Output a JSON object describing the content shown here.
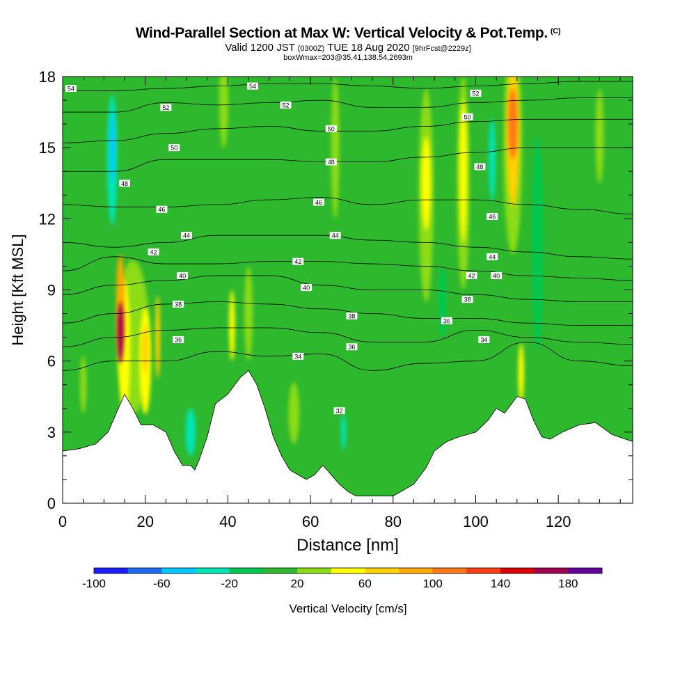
{
  "header": {
    "title": "Wind-Parallel Section at Max W: Vertical Velocity & Pot.Temp.",
    "title_mark": "(C)",
    "valid_line_a": "Valid 1200 JST",
    "valid_line_b": "(0300Z)",
    "valid_line_c": "TUE 18 Aug 2020",
    "valid_line_d": "[9hrFcst@2229z]",
    "box_line": "boxWmax=203@35.41,138.54,2693m"
  },
  "chart_data": {
    "type": "heatmap",
    "xlabel": "Distance [nm]",
    "ylabel": "Height [Kft MSL]",
    "xlim": [
      0,
      138
    ],
    "ylim": [
      0,
      18
    ],
    "x_ticks": [
      0,
      20,
      40,
      60,
      80,
      100,
      120
    ],
    "y_ticks": [
      0,
      3,
      6,
      9,
      12,
      15,
      18
    ],
    "grid": false,
    "background_field": {
      "name": "Vertical Velocity [cm/s]",
      "value": 10
    },
    "terrain_kft": {
      "x": [
        0,
        4,
        8,
        11,
        13,
        15,
        17,
        19,
        22,
        25,
        27,
        29,
        31,
        32,
        33,
        35,
        37,
        40,
        43,
        45,
        47,
        49,
        51,
        53,
        55,
        57,
        59,
        61,
        63,
        65,
        67,
        69,
        71,
        75,
        80,
        85,
        88,
        90,
        93,
        96,
        100,
        103,
        105,
        107,
        110,
        112,
        114,
        116,
        118,
        121,
        125,
        129,
        133,
        138
      ],
      "height": [
        2.2,
        2.3,
        2.5,
        3.0,
        3.8,
        4.6,
        4.0,
        3.3,
        3.3,
        3.0,
        2.2,
        1.6,
        1.6,
        1.4,
        1.8,
        2.8,
        4.2,
        4.6,
        5.3,
        5.6,
        5.0,
        4.0,
        2.8,
        2.0,
        1.4,
        1.2,
        1.0,
        1.2,
        1.6,
        1.2,
        0.8,
        0.5,
        0.3,
        0.3,
        0.3,
        0.8,
        1.5,
        2.2,
        2.6,
        2.8,
        3.0,
        3.5,
        4.0,
        3.8,
        4.5,
        4.4,
        3.5,
        2.8,
        2.7,
        3.0,
        3.3,
        3.4,
        2.9,
        2.6
      ]
    },
    "velocity_cells": [
      {
        "x": 14,
        "y": 7.2,
        "w": 1.6,
        "h": 2.6,
        "value": 170
      },
      {
        "x": 14,
        "y": 8.5,
        "w": 2.0,
        "h": 4.0,
        "value": 90
      },
      {
        "x": 15,
        "y": 6.5,
        "w": 2.8,
        "h": 5.8,
        "value": 50
      },
      {
        "x": 20,
        "y": 6.5,
        "w": 1.6,
        "h": 2.0,
        "value": 70
      },
      {
        "x": 20,
        "y": 6.0,
        "w": 2.8,
        "h": 4.5,
        "value": 40
      },
      {
        "x": 23,
        "y": 7.0,
        "w": 1.2,
        "h": 3.5,
        "value": 60
      },
      {
        "x": 17,
        "y": 7.0,
        "w": 8.0,
        "h": 6.5,
        "value": 20
      },
      {
        "x": 5,
        "y": 5.0,
        "w": 1.6,
        "h": 2.4,
        "value": 20
      },
      {
        "x": 12,
        "y": 14.5,
        "w": 2.4,
        "h": 5.5,
        "value": -30
      },
      {
        "x": 12,
        "y": 15.0,
        "w": 1.2,
        "h": 3.0,
        "value": -50
      },
      {
        "x": 41,
        "y": 7.5,
        "w": 1.4,
        "h": 3.0,
        "value": 40
      },
      {
        "x": 45,
        "y": 8.0,
        "w": 2.0,
        "h": 4.0,
        "value": 20
      },
      {
        "x": 39,
        "y": 17.0,
        "w": 2.2,
        "h": 4.0,
        "value": 20
      },
      {
        "x": 56,
        "y": 3.8,
        "w": 2.6,
        "h": 2.6,
        "value": 25
      },
      {
        "x": 88,
        "y": 13.5,
        "w": 2.2,
        "h": 4.0,
        "value": 50
      },
      {
        "x": 88,
        "y": 13.0,
        "w": 3.6,
        "h": 9.0,
        "value": 25
      },
      {
        "x": 97,
        "y": 14.0,
        "w": 1.8,
        "h": 6.0,
        "value": 55
      },
      {
        "x": 97,
        "y": 13.5,
        "w": 3.0,
        "h": 9.0,
        "value": 25
      },
      {
        "x": 109,
        "y": 16.0,
        "w": 2.2,
        "h": 3.0,
        "value": 110
      },
      {
        "x": 109,
        "y": 15.5,
        "w": 3.0,
        "h": 6.0,
        "value": 70
      },
      {
        "x": 109,
        "y": 15.0,
        "w": 4.5,
        "h": 9.0,
        "value": 25
      },
      {
        "x": 104,
        "y": 14.5,
        "w": 1.6,
        "h": 3.5,
        "value": -25
      },
      {
        "x": 115,
        "y": 11.0,
        "w": 2.6,
        "h": 9.0,
        "value": -15
      },
      {
        "x": 92,
        "y": 8.5,
        "w": 1.8,
        "h": 3.0,
        "value": -20
      },
      {
        "x": 111,
        "y": 5.5,
        "w": 1.4,
        "h": 2.5,
        "value": 40
      },
      {
        "x": 31,
        "y": 3.0,
        "w": 2.4,
        "h": 2.0,
        "value": -40
      },
      {
        "x": 68,
        "y": 3.0,
        "w": 1.2,
        "h": 1.5,
        "value": -25
      },
      {
        "x": 130,
        "y": 15.5,
        "w": 2.0,
        "h": 4.0,
        "value": 25
      },
      {
        "x": 66,
        "y": 15.0,
        "w": 2.0,
        "h": 6.0,
        "value": 25
      }
    ],
    "theta_contours": [
      {
        "label": "54",
        "y": [
          17.4,
          17.4,
          17.5,
          17.6,
          17.7,
          17.7,
          17.6,
          17.5,
          17.6,
          17.7,
          17.8,
          17.8
        ]
      },
      {
        "label": "52",
        "y": [
          16.5,
          16.5,
          16.9,
          16.8,
          16.9,
          17.0,
          16.7,
          16.7,
          16.9,
          17.0,
          17.1,
          17.1
        ]
      },
      {
        "label": "50",
        "y": [
          15.2,
          15.3,
          15.6,
          15.8,
          15.9,
          15.7,
          15.7,
          15.9,
          16.1,
          16.2,
          16.2,
          16.2
        ]
      },
      {
        "label": "48",
        "y": [
          14.0,
          14.0,
          14.5,
          14.5,
          14.5,
          14.4,
          14.4,
          14.6,
          14.8,
          15.0,
          15.0,
          15.0
        ]
      },
      {
        "label": "46",
        "y": [
          12.6,
          12.5,
          12.5,
          12.6,
          12.8,
          12.9,
          12.6,
          12.8,
          12.8,
          12.6,
          12.4,
          12.2
        ]
      },
      {
        "label": "44",
        "y": [
          11.0,
          10.8,
          11.0,
          11.3,
          11.3,
          11.3,
          11.1,
          11.0,
          10.8,
          10.6,
          10.4,
          10.3
        ]
      },
      {
        "label": "42",
        "y": [
          9.8,
          10.4,
          10.1,
          10.1,
          10.2,
          10.2,
          10.1,
          10.0,
          9.8,
          9.6,
          9.5,
          9.4
        ]
      },
      {
        "label": "40",
        "y": [
          8.8,
          9.2,
          9.4,
          9.6,
          9.6,
          9.2,
          9.0,
          9.0,
          8.8,
          8.6,
          8.5,
          8.5
        ]
      },
      {
        "label": "38",
        "y": [
          7.6,
          8.0,
          8.4,
          8.5,
          8.4,
          8.2,
          8.0,
          7.8,
          7.8,
          7.6,
          7.5,
          7.5
        ]
      },
      {
        "label": "36",
        "y": [
          6.6,
          7.0,
          7.3,
          7.4,
          7.4,
          7.2,
          6.8,
          6.8,
          7.3,
          7.0,
          6.8,
          6.7
        ]
      },
      {
        "label": "34",
        "y": [
          5.6,
          6.0,
          6.0,
          6.4,
          6.2,
          6.3,
          5.6,
          5.9,
          6.0,
          6.8,
          6.0,
          5.8
        ]
      }
    ],
    "theta_x": [
      0,
      12.5,
      25,
      37.5,
      50,
      62.5,
      75,
      87.5,
      100,
      112.5,
      125,
      138
    ],
    "contour_labels": [
      {
        "text": "54",
        "x": 2,
        "y": 17.5
      },
      {
        "text": "54",
        "x": 46,
        "y": 17.6
      },
      {
        "text": "52",
        "x": 100,
        "y": 17.3
      },
      {
        "text": "52",
        "x": 25,
        "y": 16.7
      },
      {
        "text": "52",
        "x": 54,
        "y": 16.8
      },
      {
        "text": "50",
        "x": 65,
        "y": 15.8
      },
      {
        "text": "50",
        "x": 98,
        "y": 16.3
      },
      {
        "text": "50",
        "x": 27,
        "y": 15.0
      },
      {
        "text": "48",
        "x": 65,
        "y": 14.4
      },
      {
        "text": "48",
        "x": 101,
        "y": 14.2
      },
      {
        "text": "48",
        "x": 15,
        "y": 13.5
      },
      {
        "text": "46",
        "x": 24,
        "y": 12.4
      },
      {
        "text": "46",
        "x": 62,
        "y": 12.7
      },
      {
        "text": "46",
        "x": 104,
        "y": 12.1
      },
      {
        "text": "44",
        "x": 30,
        "y": 11.3
      },
      {
        "text": "44",
        "x": 66,
        "y": 11.3
      },
      {
        "text": "44",
        "x": 104,
        "y": 10.4
      },
      {
        "text": "42",
        "x": 22,
        "y": 10.6
      },
      {
        "text": "42",
        "x": 57,
        "y": 10.2
      },
      {
        "text": "42",
        "x": 99,
        "y": 9.6
      },
      {
        "text": "40",
        "x": 29,
        "y": 9.6
      },
      {
        "text": "40",
        "x": 59,
        "y": 9.1
      },
      {
        "text": "40",
        "x": 105,
        "y": 9.6
      },
      {
        "text": "38",
        "x": 28,
        "y": 8.4
      },
      {
        "text": "38",
        "x": 70,
        "y": 7.9
      },
      {
        "text": "38",
        "x": 98,
        "y": 8.6
      },
      {
        "text": "36",
        "x": 28,
        "y": 6.9
      },
      {
        "text": "36",
        "x": 70,
        "y": 6.6
      },
      {
        "text": "36",
        "x": 93,
        "y": 7.7
      },
      {
        "text": "34",
        "x": 57,
        "y": 6.2
      },
      {
        "text": "34",
        "x": 102,
        "y": 6.9
      },
      {
        "text": "32",
        "x": 67,
        "y": 3.9
      }
    ],
    "colorbar": {
      "label": "Vertical Velocity [cm/s]",
      "min": -100,
      "max": 200,
      "step": 20,
      "tick_labels": [
        "-100",
        "-60",
        "-20",
        "20",
        "60",
        "100",
        "140",
        "180"
      ],
      "colors": [
        "#1a1aff",
        "#1a6cf5",
        "#00c8ff",
        "#00e6b8",
        "#00c850",
        "#2db82d",
        "#8cdc14",
        "#ffff00",
        "#ffd200",
        "#ffaa00",
        "#ff7814",
        "#ff3c14",
        "#dc0000",
        "#a00050",
        "#64009a"
      ]
    }
  }
}
